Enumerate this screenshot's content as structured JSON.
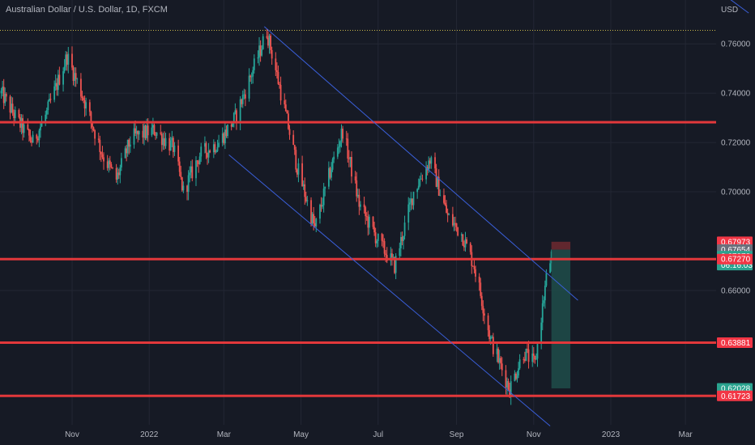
{
  "header": {
    "symbol_title": "Australian Dollar / U.S. Dollar, 1D, FXCM",
    "currency": "USD"
  },
  "colors": {
    "background": "#161a25",
    "grid": "#232734",
    "up_candle": "#26a69a",
    "down_candle": "#ef5350",
    "level_line": "#e2383b",
    "channel_line": "#3a5fd9",
    "axis_text": "#b2b5be",
    "dotted_high": "#c9b64a",
    "short_stop_zone": "#6f2a30",
    "short_target_zone": "#1f4e4a"
  },
  "chart_data": {
    "type": "candlestick",
    "title": "Australian Dollar / U.S. Dollar, 1D, FXCM",
    "ylim": [
      0.6055,
      0.7778
    ],
    "y_ticks": [
      "0.76000",
      "0.74000",
      "0.72000",
      "0.70000",
      "0.66000"
    ],
    "x_ticks": [
      "Nov",
      "2022",
      "Mar",
      "May",
      "Jul",
      "Sep",
      "Nov",
      "2023",
      "Mar"
    ],
    "x_range": [
      "2021-09-05",
      "2023-04-25"
    ],
    "candle_path": [
      [
        "2021-09-06",
        0.74
      ],
      [
        "2021-09-20",
        0.728
      ],
      [
        "2021-10-01",
        0.72
      ],
      [
        "2021-10-12",
        0.732
      ],
      [
        "2021-10-28",
        0.755
      ],
      [
        "2021-11-10",
        0.738
      ],
      [
        "2021-11-25",
        0.715
      ],
      [
        "2021-12-06",
        0.705
      ],
      [
        "2021-12-18",
        0.722
      ],
      [
        "2022-01-05",
        0.725
      ],
      [
        "2022-01-20",
        0.718
      ],
      [
        "2022-01-28",
        0.7
      ],
      [
        "2022-02-10",
        0.715
      ],
      [
        "2022-02-25",
        0.72
      ],
      [
        "2022-03-10",
        0.73
      ],
      [
        "2022-03-28",
        0.755
      ],
      [
        "2022-04-04",
        0.765
      ],
      [
        "2022-04-13",
        0.745
      ],
      [
        "2022-04-28",
        0.71
      ],
      [
        "2022-05-12",
        0.685
      ],
      [
        "2022-05-25",
        0.71
      ],
      [
        "2022-06-03",
        0.725
      ],
      [
        "2022-06-16",
        0.695
      ],
      [
        "2022-07-01",
        0.68
      ],
      [
        "2022-07-14",
        0.67
      ],
      [
        "2022-07-29",
        0.7
      ],
      [
        "2022-08-11",
        0.713
      ],
      [
        "2022-08-25",
        0.69
      ],
      [
        "2022-09-05",
        0.683
      ],
      [
        "2022-09-15",
        0.67
      ],
      [
        "2022-09-28",
        0.64
      ],
      [
        "2022-10-13",
        0.62
      ],
      [
        "2022-10-24",
        0.635
      ],
      [
        "2022-11-02",
        0.63
      ],
      [
        "2022-11-11",
        0.665
      ],
      [
        "2022-11-15",
        0.674
      ]
    ],
    "horizontal_levels": [
      {
        "value": 0.72822,
        "label": "0.72822"
      },
      {
        "value": 0.6727,
        "label": "0.67270"
      },
      {
        "value": 0.63881,
        "label": "0.63881"
      },
      {
        "value": 0.61723,
        "label": "0.61723"
      }
    ],
    "dotted_high_level": 0.7655,
    "price_labels": [
      {
        "value": 0.67973,
        "label": "0.67973",
        "color": "#f23645"
      },
      {
        "value": 0.67654,
        "label": "0.67654",
        "color": "#6b6f7b"
      },
      {
        "value": 0.67372,
        "label": "0.67372",
        "sub": "06:16:03",
        "color": "#2aa38f"
      },
      {
        "value": 0.6727,
        "label": "0.67270",
        "color": "#f23645"
      },
      {
        "value": 0.63881,
        "label": "0.63881",
        "color": "#f23645"
      },
      {
        "value": 0.62028,
        "label": "0.62028",
        "color": "#2aa38f"
      },
      {
        "value": 0.61723,
        "label": "0.61723",
        "color": "#f23645"
      }
    ],
    "channel_lines": [
      [
        [
          "2022-04-02",
          0.767
        ],
        [
          "2022-12-06",
          0.656
        ]
      ],
      [
        [
          "2022-03-05",
          0.715
        ],
        [
          "2022-11-14",
          0.605
        ]
      ]
    ],
    "currency_line": [
      [
        "2023-03-05",
        0.79
      ],
      [
        "2023-04-20",
        0.7725
      ]
    ],
    "short_position": {
      "start": "2022-11-15",
      "end": "2022-11-30",
      "entry": 0.67654,
      "stop": 0.67973,
      "target": 0.62028
    }
  }
}
